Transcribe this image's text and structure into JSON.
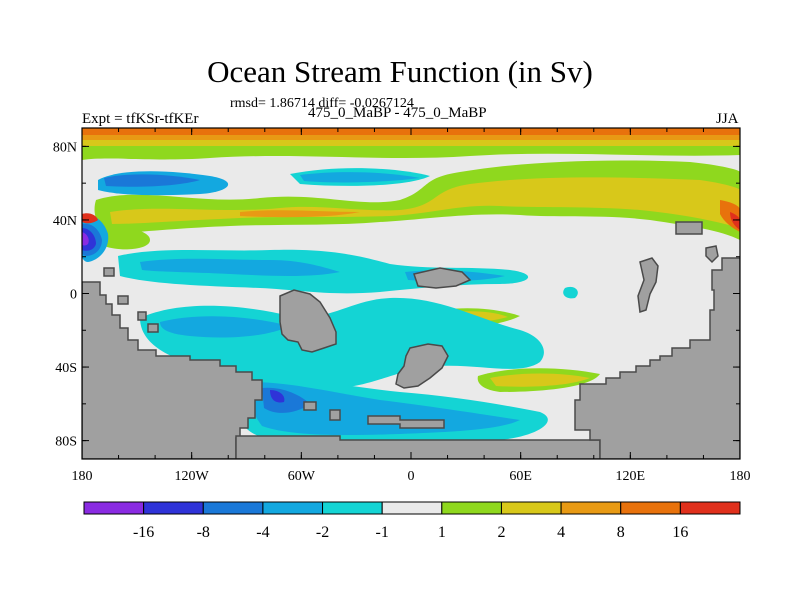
{
  "title": "Ocean Stream Function (in Sv)",
  "subtitle": "rmsd= 1.86714 diff= -0.0267124",
  "left_label": "Expt = tfKSr-tfKEr",
  "center_label": "475_0_MaBP - 475_0_MaBP",
  "right_label": "JJA",
  "chart_data": {
    "type": "heatmap",
    "title": "Ocean Stream Function (in Sv)",
    "x_ticks": [
      "180",
      "120W",
      "60W",
      "0",
      "60E",
      "120E",
      "180"
    ],
    "x_tick_values": [
      -180,
      -120,
      -60,
      0,
      60,
      120,
      180
    ],
    "y_ticks": [
      "80N",
      "40N",
      "0",
      "40S",
      "80S"
    ],
    "y_tick_values": [
      80,
      40,
      0,
      -40,
      -80
    ],
    "xlim": [
      -180,
      180
    ],
    "ylim": [
      -90,
      90
    ],
    "colorbar": {
      "labels": [
        "-16",
        "-8",
        "-4",
        "-2",
        "-1",
        "1",
        "2",
        "4",
        "8",
        "16"
      ],
      "colors": [
        "#8a2be2",
        "#2f33d8",
        "#1a78d8",
        "#13a8e0",
        "#14d4d4",
        "#eaeaea",
        "#8fd81e",
        "#d8c81a",
        "#e89a14",
        "#e8720c",
        "#e0301c"
      ]
    },
    "land_color": "#a0a0a0",
    "ocean_neutral_color": "#eaeaea"
  }
}
